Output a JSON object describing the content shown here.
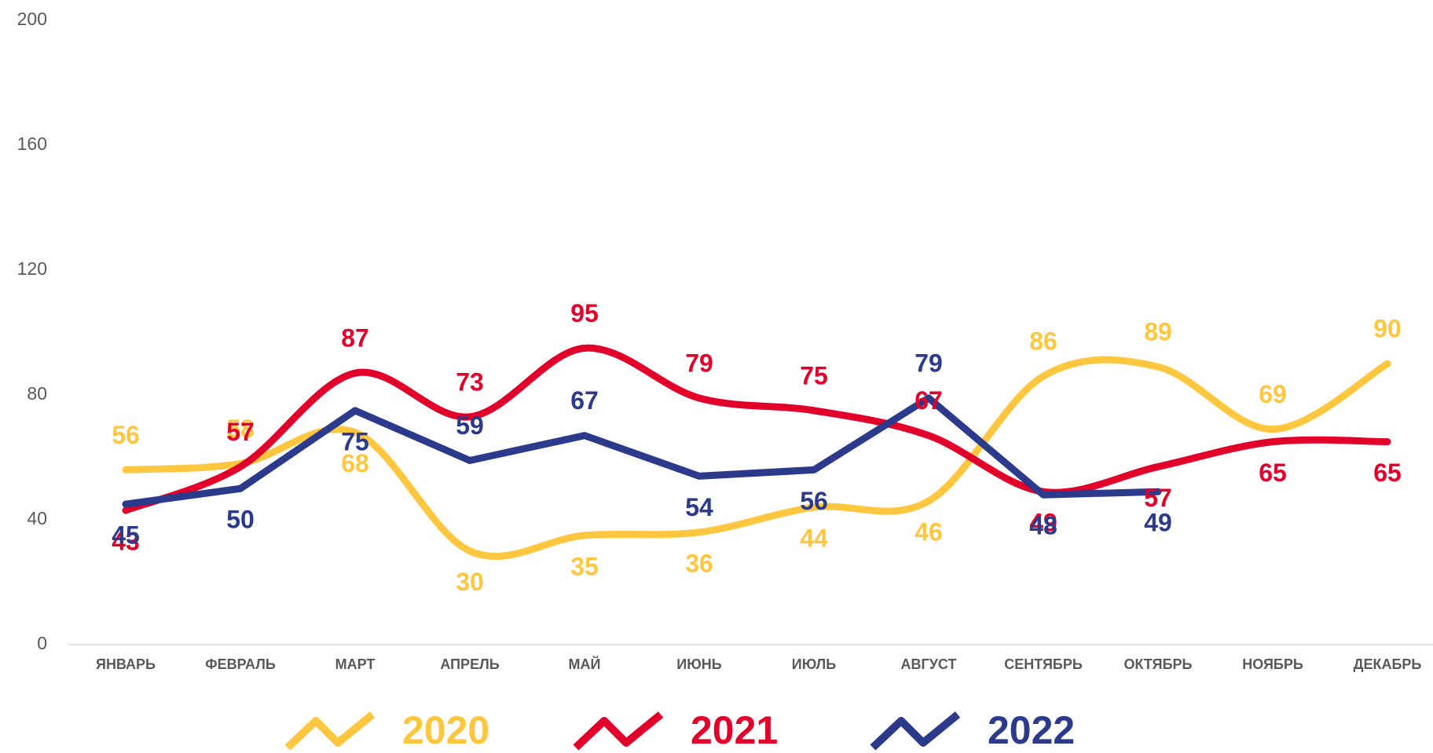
{
  "chart_data": {
    "type": "line",
    "categories": [
      "ЯНВАРЬ",
      "ФЕВРАЛЬ",
      "МАРТ",
      "АПРЕЛЬ",
      "МАЙ",
      "ИЮНЬ",
      "ИЮЛЬ",
      "АВГУСТ",
      "СЕНТЯБРЬ",
      "ОКТЯБРЬ",
      "НОЯБРЬ",
      "ДЕКАБРЬ"
    ],
    "series": [
      {
        "name": "2020",
        "color": "#FFC73F",
        "smooth": true,
        "values": [
          56,
          58,
          68,
          30,
          35,
          36,
          44,
          46,
          86,
          89,
          69,
          90
        ]
      },
      {
        "name": "2021",
        "color": "#E2002B",
        "smooth": true,
        "values": [
          43,
          57,
          87,
          73,
          95,
          79,
          75,
          67,
          49,
          57,
          65,
          65
        ]
      },
      {
        "name": "2022",
        "color": "#2B3A8A",
        "smooth": false,
        "values": [
          45,
          50,
          75,
          59,
          67,
          54,
          56,
          79,
          48,
          49,
          null,
          null
        ]
      }
    ],
    "ylim": [
      0,
      200
    ],
    "yticks": [
      0,
      40,
      80,
      120,
      160,
      200
    ],
    "grid": false,
    "legend": "bottom"
  }
}
